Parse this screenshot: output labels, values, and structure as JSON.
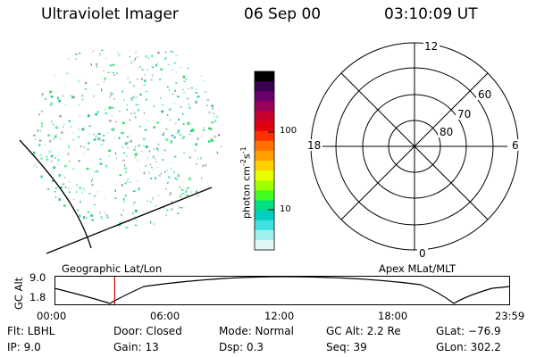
{
  "header": {
    "instrument": "Ultraviolet Imager",
    "date": "06 Sep 00",
    "time": "03:10:09 UT"
  },
  "colorbar": {
    "unit_label": "photon cm",
    "unit_exp1": "-2",
    "unit_mid": "s",
    "unit_exp2": "-1",
    "tick_labels": [
      "100",
      "10"
    ],
    "colors": [
      "#000000",
      "#3a0050",
      "#6a006a",
      "#9a005a",
      "#c80030",
      "#e00010",
      "#ff3000",
      "#ff7000",
      "#ffa000",
      "#ffd000",
      "#e8ff00",
      "#a0ff00",
      "#40ff20",
      "#00e080",
      "#00d0c0",
      "#40e0e0",
      "#a0f0f0",
      "#e0f8f8"
    ]
  },
  "polar_plot": {
    "clock_labels": [
      "12",
      "18",
      "6",
      "0"
    ],
    "lat_labels": [
      "60",
      "70",
      "80"
    ]
  },
  "timeline": {
    "left_title": "Geographic Lat/Lon",
    "right_title": "Apex MLat/MLT",
    "y_title": "GC Alt",
    "y_ticks": [
      "9.0",
      "1.8"
    ],
    "x_ticks": [
      "00:00",
      "06:00",
      "12:00",
      "18:00",
      "23:59"
    ],
    "current_time_marker_hours": 3.17,
    "marker_color": "#cc0000"
  },
  "info": {
    "flt": "Flt:  LBHL",
    "ip": "IP:  9.0",
    "door": "Door: Closed",
    "gain": "Gain: 13",
    "mode": "Mode:  Normal",
    "dsp": "Dsp:     0.3",
    "gcalt": "GC Alt: 2.2 Re",
    "seq": "Seq:  39",
    "glat": "GLat:  −76.9",
    "glon": "GLon: 302.2"
  }
}
